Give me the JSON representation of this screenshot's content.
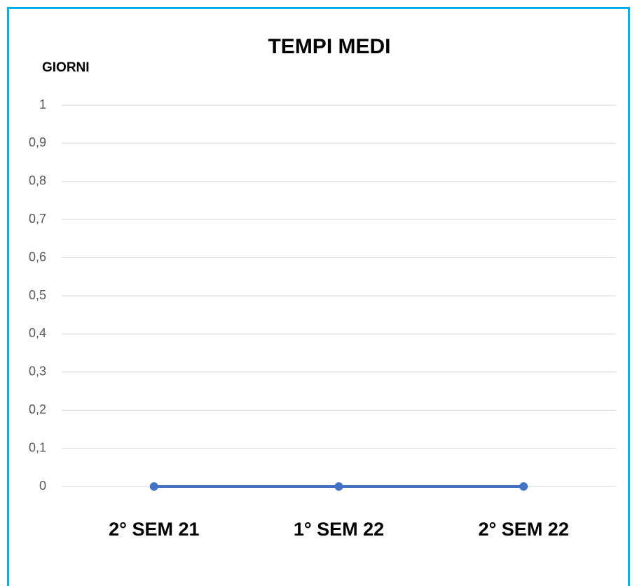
{
  "chart_data": {
    "type": "line",
    "title": "TEMPI MEDI",
    "y_label": "GIORNI",
    "categories": [
      "2° SEM 21",
      "1° SEM 22",
      "2° SEM 22"
    ],
    "series": [
      {
        "name": "TEMPI MEDI",
        "color": "#4472c4",
        "values": [
          0,
          0,
          0
        ]
      }
    ],
    "ylim": [
      0,
      1
    ],
    "yticks": [
      0,
      {
        "value": 0.1,
        "label": "0,1"
      },
      {
        "value": 0.2,
        "label": "0,2"
      },
      {
        "value": 0.3,
        "label": "0,3"
      },
      {
        "value": 0.4,
        "label": "0,4"
      },
      {
        "value": 0.5,
        "label": "0,5"
      },
      {
        "value": 0.6,
        "label": "0,6"
      },
      {
        "value": 0.7,
        "label": "0,7"
      },
      {
        "value": 0.8,
        "label": "0,8"
      },
      {
        "value": 0.9,
        "label": "0,9"
      },
      1
    ],
    "grid": true
  }
}
